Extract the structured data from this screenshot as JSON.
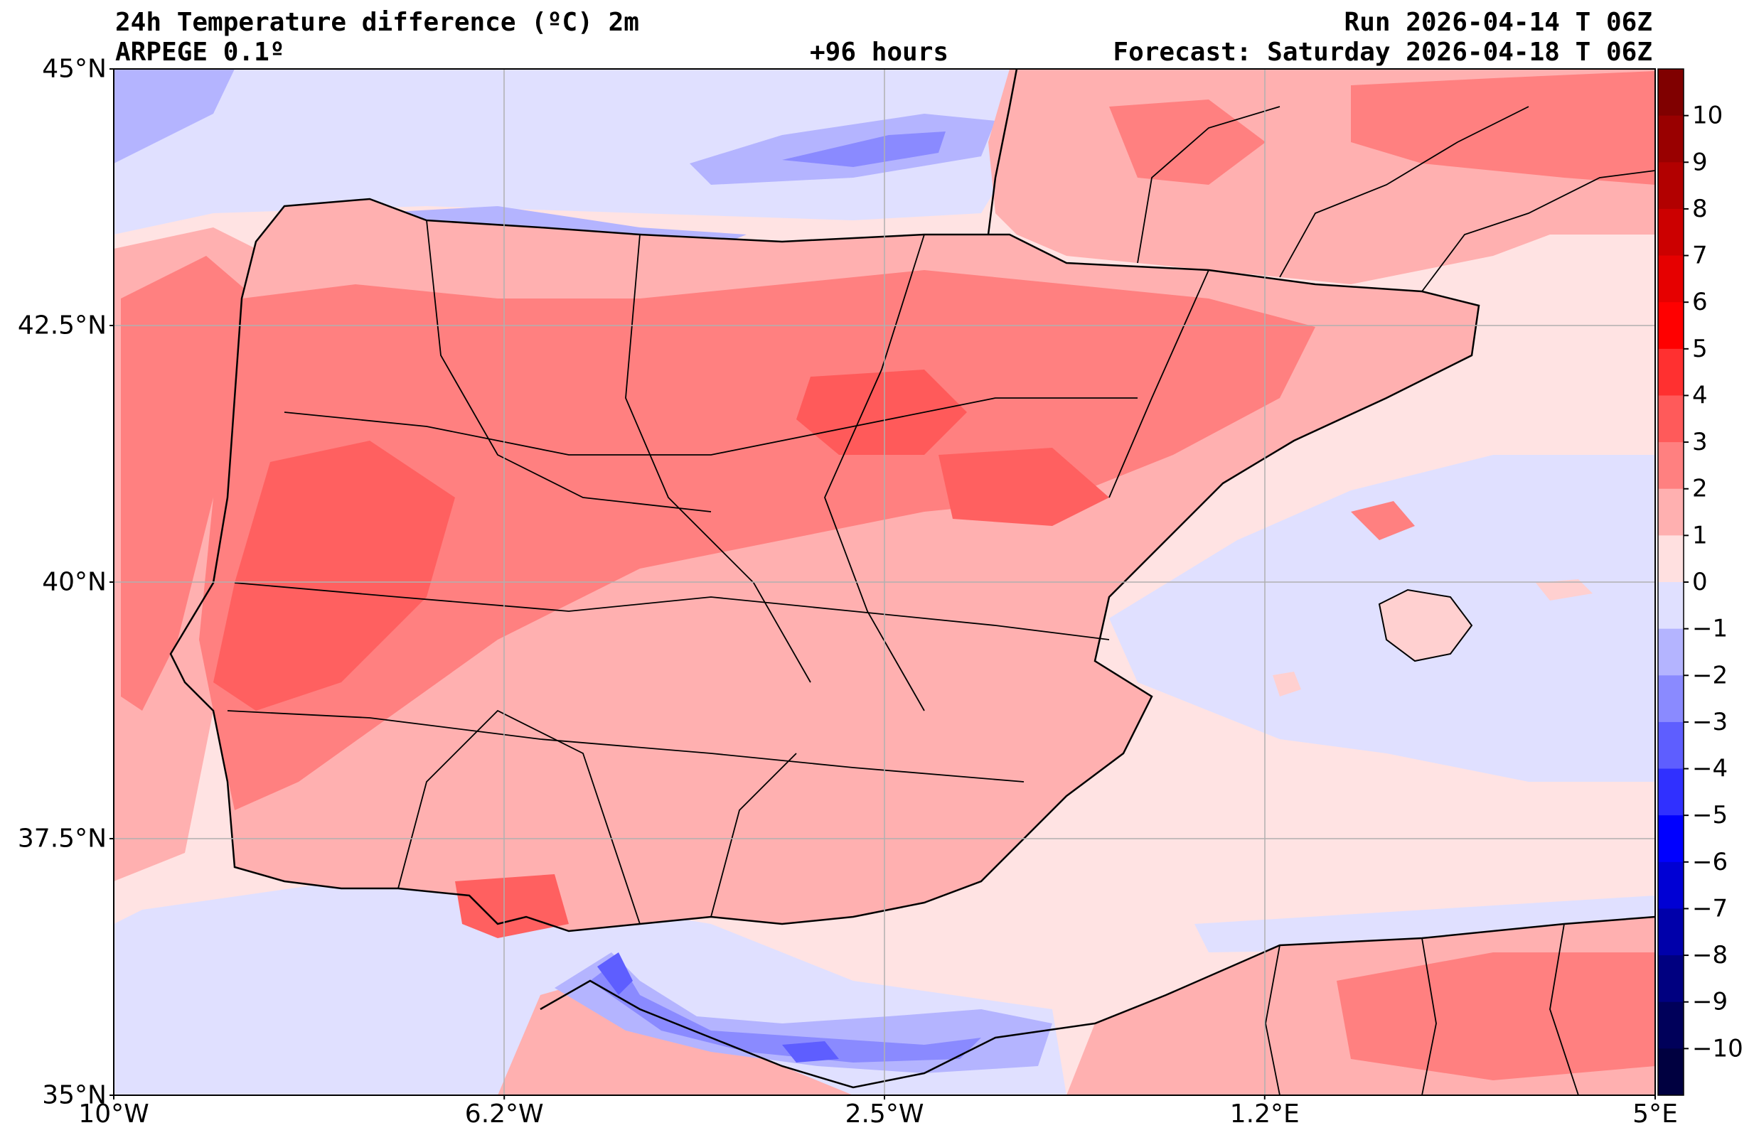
{
  "header": {
    "title": "24h Temperature difference (ºC) 2m",
    "model": "ARPEGE 0.1º",
    "lead": "+96 hours",
    "run": "Run 2026-04-14 T 06Z",
    "forecast": "Forecast: Saturday 2026-04-18 T 06Z"
  },
  "map": {
    "lon_range": [
      -10,
      5
    ],
    "lat_range": [
      35,
      45
    ],
    "grid": true,
    "lat_ticks": [
      {
        "value": 45,
        "label": "45°N"
      },
      {
        "value": 42.5,
        "label": "42.5°N"
      },
      {
        "value": 40,
        "label": "40°N"
      },
      {
        "value": 37.5,
        "label": "37.5°N"
      },
      {
        "value": 35,
        "label": "35°N"
      }
    ],
    "lon_ticks": [
      {
        "value": -10,
        "label": "10°W"
      },
      {
        "value": -6.2,
        "label": "6.2°W"
      },
      {
        "value": -2.5,
        "label": "2.5°W"
      },
      {
        "value": 1.2,
        "label": "1.2°E"
      },
      {
        "value": 5,
        "label": "5°E"
      }
    ]
  },
  "colorbar": {
    "range": [
      -11,
      11
    ],
    "tick_labels": [
      "10",
      "9",
      "8",
      "7",
      "6",
      "5",
      "4",
      "3",
      "2",
      "1",
      "0",
      "−1",
      "−2",
      "−3",
      "−4",
      "−5",
      "−6",
      "−7",
      "−8",
      "−9",
      "−10"
    ],
    "tick_values": [
      10,
      9,
      8,
      7,
      6,
      5,
      4,
      3,
      2,
      1,
      0,
      -1,
      -2,
      -3,
      -4,
      -5,
      -6,
      -7,
      -8,
      -9,
      -10
    ],
    "colors_top_to_bottom": [
      "#800000",
      "#990000",
      "#b20000",
      "#cc0000",
      "#e60000",
      "#ff0000",
      "#ff3030",
      "#ff5a5a",
      "#ff8080",
      "#ffb0b0",
      "#ffe0e0",
      "#e0e0ff",
      "#b4b4ff",
      "#8a8aff",
      "#5e5eff",
      "#3030ff",
      "#0000ff",
      "#0000d4",
      "#0000aa",
      "#000080",
      "#00005a",
      "#000040"
    ]
  },
  "colors": {
    "sea_neutral": "#ffe3e3",
    "sea_cool": "#e0e0ff",
    "land_warm": "#ff9e9e",
    "land_hot": "#ff6060",
    "hot_core": "#f53a3a",
    "cold_core": "#5e5eff"
  }
}
